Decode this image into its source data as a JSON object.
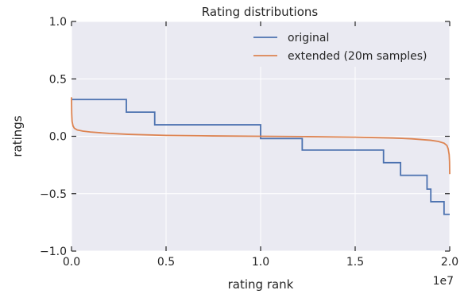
{
  "chart_data": {
    "type": "line",
    "title": "Rating distributions",
    "xlabel": "rating rank",
    "ylabel": "ratings",
    "x_offset_label": "1e7",
    "xlim": [
      0,
      20000000
    ],
    "ylim": [
      -1.0,
      1.0
    ],
    "x_ticks": [
      0,
      5000000,
      10000000,
      15000000,
      20000000
    ],
    "x_tick_labels": [
      "0.0",
      "0.5",
      "1.0",
      "1.5",
      "2.0"
    ],
    "y_ticks": [
      -1.0,
      -0.5,
      0.0,
      0.5,
      1.0
    ],
    "y_tick_labels": [
      "−1.0",
      "−0.5",
      "0.0",
      "0.5",
      "1.0"
    ],
    "grid": true,
    "legend_position": "top-right",
    "colors": {
      "background": "#eaeaf2",
      "grid": "#ffffff",
      "original": "#4c72b0",
      "extended": "#dd8452"
    },
    "series": [
      {
        "name": "original",
        "color": "#4c72b0",
        "step": true,
        "x": [
          0,
          2900000,
          2900000,
          4400000,
          4400000,
          10000000,
          10000000,
          12200000,
          12200000,
          16500000,
          16500000,
          17400000,
          17400000,
          18800000,
          18800000,
          19000000,
          19000000,
          19700000,
          19700000,
          20000000
        ],
        "y": [
          0.32,
          0.32,
          0.21,
          0.21,
          0.1,
          0.1,
          -0.02,
          -0.02,
          -0.12,
          -0.12,
          -0.23,
          -0.23,
          -0.34,
          -0.34,
          -0.46,
          -0.46,
          -0.57,
          -0.57,
          -0.68,
          -0.68
        ]
      },
      {
        "name": "extended (20m samples)",
        "color": "#dd8452",
        "step": false,
        "x": [
          0,
          10000,
          30000,
          80000,
          150000,
          300000,
          600000,
          1000000,
          2000000,
          3000000,
          5000000,
          7500000,
          10000000,
          12500000,
          15000000,
          17000000,
          18000000,
          19000000,
          19400000,
          19700000,
          19850000,
          19920000,
          19970000,
          19990000,
          20000000
        ],
        "y": [
          0.34,
          0.2,
          0.13,
          0.09,
          0.07,
          0.055,
          0.045,
          0.037,
          0.025,
          0.017,
          0.008,
          0.003,
          0.0,
          -0.003,
          -0.008,
          -0.015,
          -0.022,
          -0.035,
          -0.045,
          -0.06,
          -0.08,
          -0.11,
          -0.16,
          -0.22,
          -0.33
        ]
      }
    ]
  }
}
